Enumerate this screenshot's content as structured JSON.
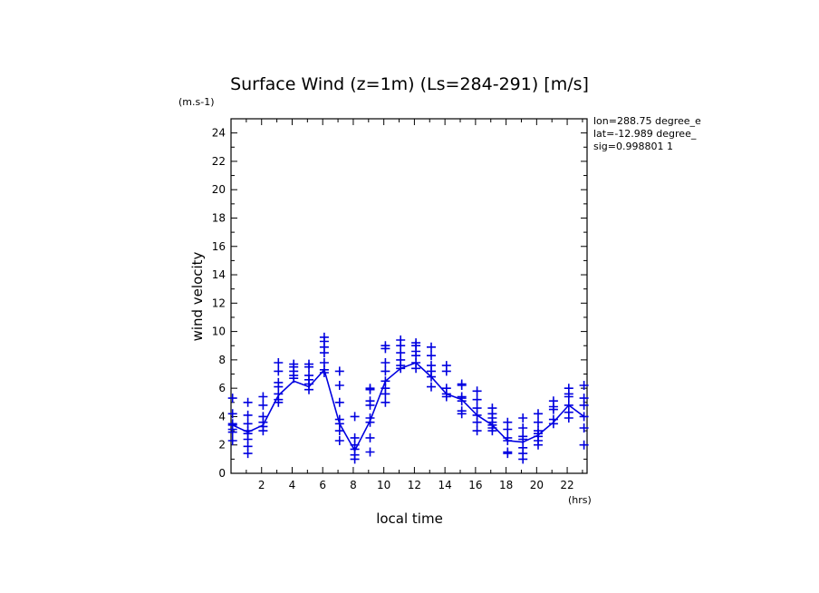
{
  "chart_data": {
    "type": "scatter",
    "title": "Surface Wind (z=1m) (Ls=284-291) [m/s]",
    "xlabel": "local time",
    "ylabel": "wind velocity",
    "x_unit": "(hrs)",
    "y_unit": "(m.s-1)",
    "xlim": [
      0,
      23.3
    ],
    "ylim": [
      0,
      25
    ],
    "xticks": [
      2,
      4,
      6,
      8,
      10,
      12,
      14,
      16,
      18,
      20,
      22
    ],
    "yticks": [
      0,
      2,
      4,
      6,
      8,
      10,
      12,
      14,
      16,
      18,
      20,
      22,
      24
    ],
    "info": [
      "lon=288.75 degree_e",
      "lat=-12.989 degree_",
      "sig=0.998801 1"
    ],
    "color": "#0000e0",
    "mean_line": {
      "x": [
        0.1,
        1.1,
        2.1,
        3.1,
        4.1,
        5.1,
        6.1,
        7.1,
        8.1,
        9.1,
        10.1,
        11.1,
        12.1,
        13.1,
        14.1,
        15.1,
        16.1,
        17.1,
        18.1,
        19.1,
        20.1,
        21.1,
        22.1,
        23.1
      ],
      "y": [
        3.4,
        2.9,
        3.4,
        5.5,
        6.5,
        6.1,
        7.3,
        3.5,
        1.6,
        3.7,
        6.5,
        7.4,
        7.8,
        6.8,
        5.6,
        5.2,
        4.1,
        3.4,
        2.3,
        2.2,
        2.7,
        3.6,
        4.8,
        4.0
      ]
    },
    "samples": [
      {
        "x": 0.1,
        "y": [
          5.3,
          4.2,
          3.5,
          3.4,
          3.1,
          2.9,
          2.3
        ]
      },
      {
        "x": 1.1,
        "y": [
          5.0,
          4.1,
          3.5,
          3.0,
          2.8,
          2.4,
          1.9,
          1.4
        ]
      },
      {
        "x": 2.1,
        "y": [
          5.4,
          4.8,
          4.0,
          3.6,
          3.3,
          3.0
        ]
      },
      {
        "x": 3.1,
        "y": [
          7.8,
          7.2,
          6.4,
          6.1,
          5.6,
          5.2,
          5.0
        ]
      },
      {
        "x": 4.1,
        "y": [
          7.7,
          7.5,
          7.2,
          6.9,
          6.7
        ]
      },
      {
        "x": 5.1,
        "y": [
          7.7,
          7.5,
          6.9,
          6.6,
          6.3,
          5.9
        ]
      },
      {
        "x": 6.1,
        "y": [
          9.6,
          9.3,
          8.9,
          8.5,
          7.8,
          7.3,
          7.1
        ]
      },
      {
        "x": 7.1,
        "y": [
          7.2,
          6.2,
          5.0,
          3.8,
          3.5,
          3.0,
          2.3
        ]
      },
      {
        "x": 8.1,
        "y": [
          4.0,
          2.5,
          2.0,
          1.7,
          1.3,
          1.0
        ]
      },
      {
        "x": 9.1,
        "y": [
          6.0,
          5.9,
          5.1,
          4.8,
          3.9,
          3.6,
          2.5,
          1.5
        ]
      },
      {
        "x": 10.1,
        "y": [
          9.0,
          8.8,
          7.8,
          7.2,
          6.5,
          6.0,
          5.6,
          5.0
        ]
      },
      {
        "x": 11.1,
        "y": [
          9.4,
          9.0,
          8.5,
          8.0,
          7.6,
          7.4
        ]
      },
      {
        "x": 12.1,
        "y": [
          9.2,
          9.0,
          8.6,
          8.3,
          7.8,
          7.4
        ]
      },
      {
        "x": 13.1,
        "y": [
          8.9,
          8.3,
          7.6,
          7.2,
          6.8,
          6.1
        ]
      },
      {
        "x": 14.1,
        "y": [
          7.6,
          7.2,
          6.0,
          5.6,
          5.4
        ]
      },
      {
        "x": 15.1,
        "y": [
          6.3,
          6.2,
          5.4,
          5.3,
          5.1,
          4.4,
          4.2
        ]
      },
      {
        "x": 16.1,
        "y": [
          5.8,
          5.2,
          4.6,
          4.1,
          3.6,
          3.0
        ]
      },
      {
        "x": 17.1,
        "y": [
          4.6,
          4.2,
          3.9,
          3.6,
          3.4,
          3.2,
          3.0
        ]
      },
      {
        "x": 18.1,
        "y": [
          3.6,
          3.1,
          2.5,
          2.3,
          1.5,
          1.4
        ]
      },
      {
        "x": 19.1,
        "y": [
          3.9,
          3.2,
          2.6,
          2.4,
          1.8,
          1.4,
          1.0
        ]
      },
      {
        "x": 20.1,
        "y": [
          4.2,
          3.6,
          3.0,
          2.8,
          2.6,
          2.3,
          2.0
        ]
      },
      {
        "x": 21.1,
        "y": [
          5.1,
          4.7,
          4.5,
          3.8,
          3.5
        ]
      },
      {
        "x": 22.1,
        "y": [
          6.0,
          5.6,
          5.4,
          4.8,
          4.3,
          3.9
        ]
      },
      {
        "x": 23.1,
        "y": [
          6.2,
          5.3,
          4.8,
          4.0,
          3.2,
          2.0
        ]
      }
    ]
  }
}
